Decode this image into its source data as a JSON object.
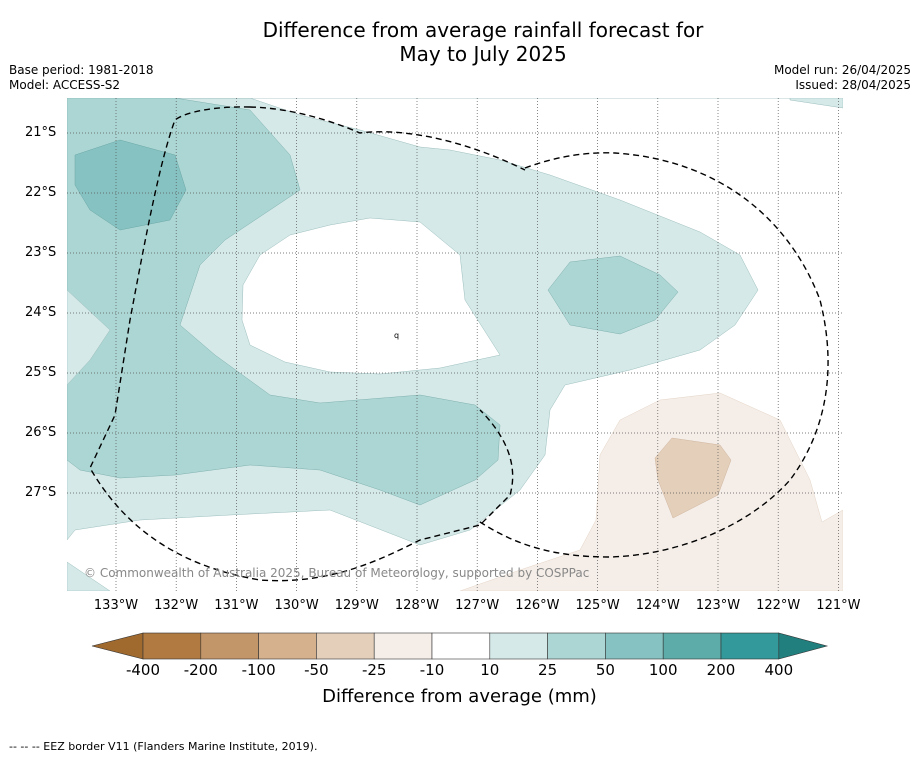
{
  "title_line1": "Difference from average rainfall forecast for",
  "title_line2": "May to July 2025",
  "base_period": "Base period: 1981-2018",
  "model": "Model: ACCESS-S2",
  "model_run": "Model run: 26/04/2025",
  "issued": "Issued: 28/04/2025",
  "copyright": "© Commonwealth of Australia 2025, Bureau of Meteorology, supported by COSPPac",
  "footnote": "-- -- -- EEZ border V11 (Flanders Marine Institute, 2019).",
  "latitudes": [
    "21°S",
    "22°S",
    "23°S",
    "24°S",
    "25°S",
    "26°S",
    "27°S"
  ],
  "longitudes": [
    "133°W",
    "132°W",
    "131°W",
    "130°W",
    "129°W",
    "128°W",
    "127°W",
    "126°W",
    "125°W",
    "124°W",
    "123°W",
    "122°W",
    "121°W"
  ],
  "colorbar": {
    "title": "Difference from average (mm)",
    "labels": [
      "-400",
      "-200",
      "-100",
      "-50",
      "-25",
      "-10",
      "10",
      "25",
      "50",
      "100",
      "200",
      "400"
    ],
    "colors": [
      "#a0692e",
      "#b07a40",
      "#c39669",
      "#d5b18d",
      "#e4cfbb",
      "#f5eee8",
      "#ffffff",
      "#d4e9e8",
      "#acd6d4",
      "#86c2c1",
      "#5eacaa",
      "#33999a",
      "#217f7e"
    ]
  }
}
